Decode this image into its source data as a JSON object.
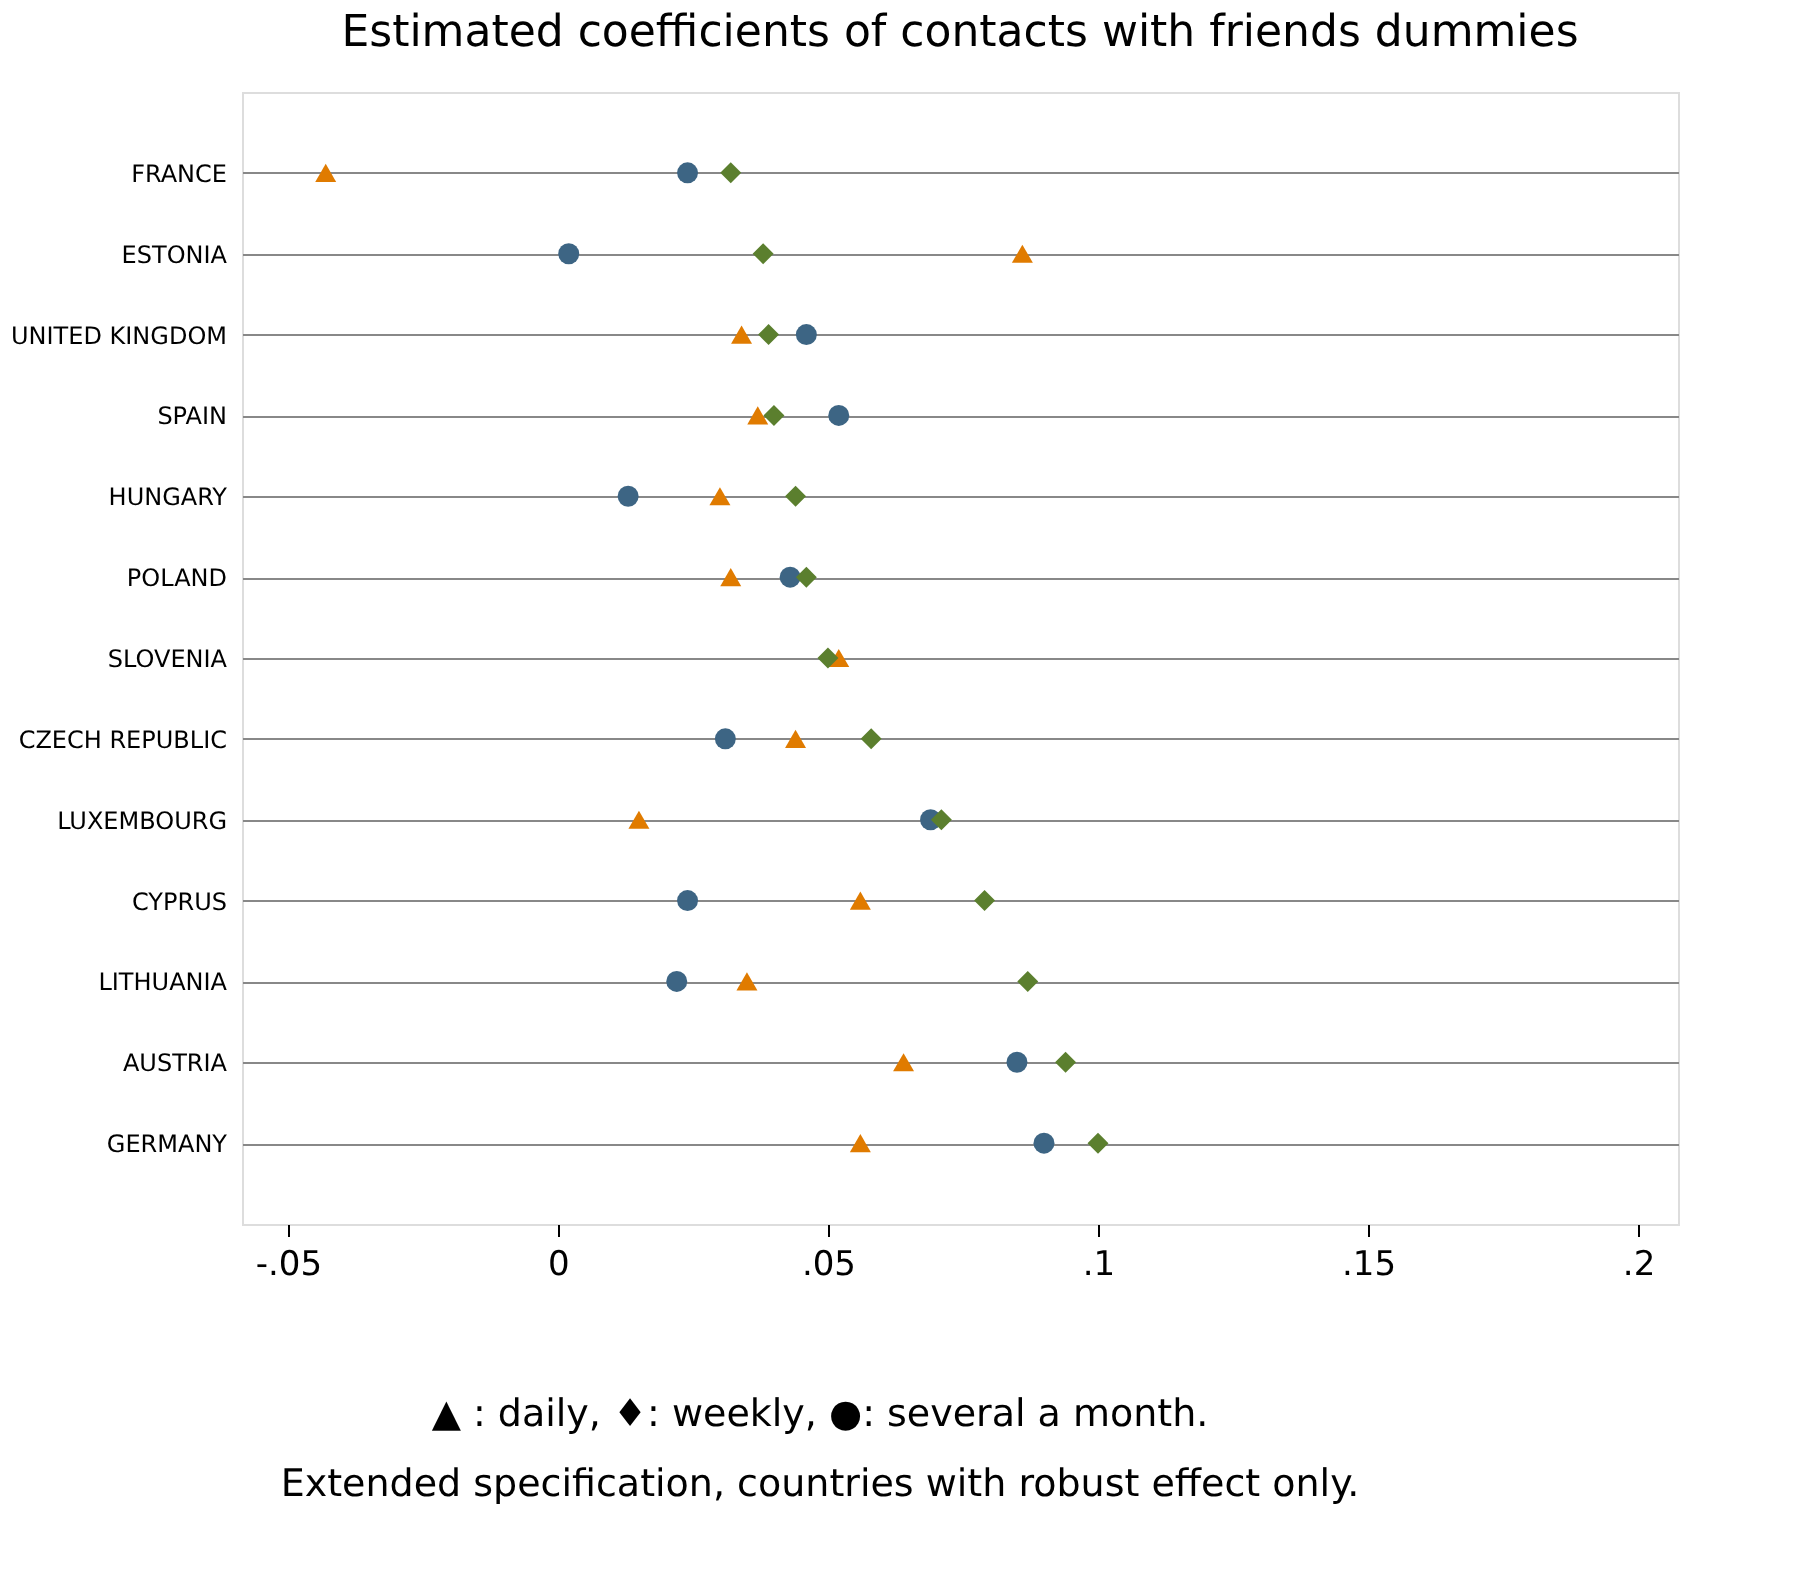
{
  "chart_data": {
    "type": "scatter",
    "title": "Estimated coefficients of contacts with friends dummies",
    "categories": [
      "FRANCE",
      "ESTONIA",
      "UNITED KINGDOM",
      "SPAIN",
      "HUNGARY",
      "POLAND",
      "SLOVENIA",
      "CZECH REPUBLIC",
      "LUXEMBOURG",
      "CYPRUS",
      "LITHUANIA",
      "AUSTRIA",
      "GERMANY"
    ],
    "orientation": "horizontal",
    "series": [
      {
        "color": "#e07b00",
        "marker": "triangle",
        "values": [
          -0.043,
          0.086,
          0.034,
          0.037,
          0.03,
          0.032,
          0.052,
          0.044,
          0.015,
          0.056,
          0.035,
          0.064,
          0.056
        ]
      },
      {
        "color": "#3d6584",
        "marker": "circle",
        "values": [
          0.024,
          0.002,
          0.046,
          0.052,
          0.013,
          0.043,
          null,
          0.031,
          0.069,
          0.024,
          0.022,
          0.085,
          0.09
        ]
      },
      {
        "color": "#5b7f2e",
        "marker": "diamond",
        "values": [
          0.032,
          0.038,
          0.039,
          0.04,
          0.044,
          0.046,
          0.05,
          0.058,
          0.071,
          0.079,
          0.087,
          0.094,
          0.1
        ]
      }
    ],
    "xlim": [
      -0.0585,
      0.2074
    ],
    "xticks": [
      {
        "value": -0.05,
        "label": "-.05"
      },
      {
        "value": 0,
        "label": "0"
      },
      {
        "value": 0.05,
        "label": ".05"
      },
      {
        "value": 0.1,
        "label": ".1"
      },
      {
        "value": 0.15,
        "label": ".15"
      },
      {
        "value": 0.2,
        "label": ".2"
      }
    ],
    "grid": "y",
    "annotations": [
      "▲ : daily, ♦: weekly, ●: several a month.",
      "Extended specification, countries with robust effect only."
    ]
  }
}
